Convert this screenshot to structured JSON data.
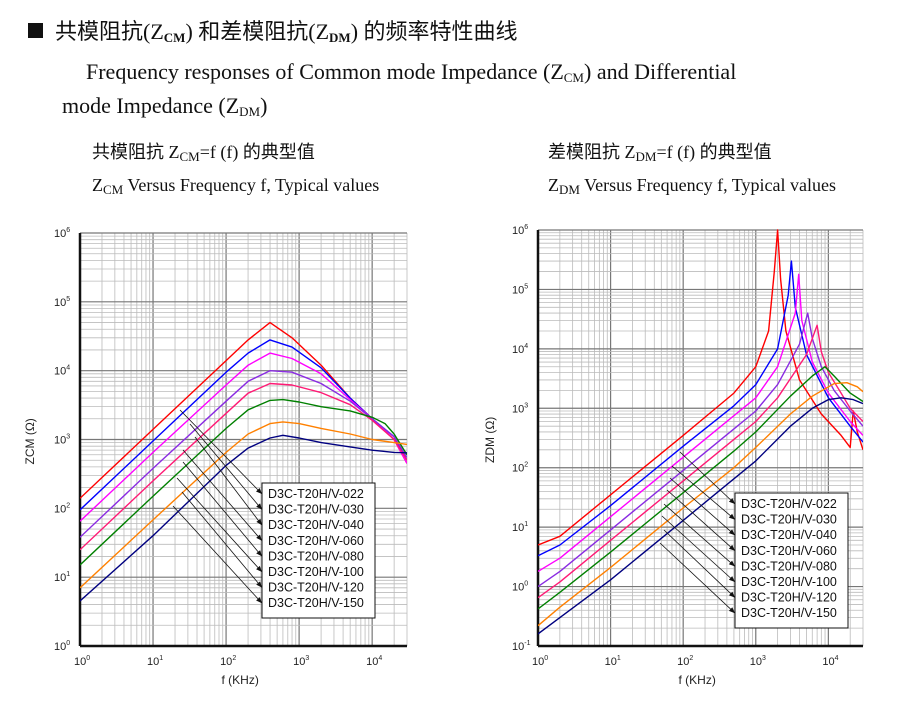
{
  "header": {
    "bullet_icon": "black-square-icon",
    "title_cn_prefix": "共模阻抗(Z",
    "title_cn_sub1": "CM",
    "title_cn_mid": ") 和差模阻抗(Z",
    "title_cn_sub2": "DM",
    "title_cn_suffix": ") 的频率特性曲线"
  },
  "intro": {
    "line1_prefix": "Frequency responses of Common mode Impedance (Z",
    "line1_sub": "CM",
    "line1_suffix": ") and Differential",
    "line2_prefix": "mode Impedance (Z",
    "line2_sub": "DM",
    "line2_suffix": ")"
  },
  "captions": {
    "left_cn_prefix": "共模阻抗 Z",
    "left_cn_sub": "CM",
    "left_cn_suffix": "=f (f)  的典型值",
    "left_en_prefix": "Z",
    "left_en_sub": "CM",
    "left_en_suffix": " Versus Frequency f, Typical values",
    "right_cn_prefix": "差模阻抗 Z",
    "right_cn_sub": "DM",
    "right_cn_suffix": "=f (f)  的典型值",
    "right_en_prefix": "Z",
    "right_en_sub": "DM",
    "right_en_suffix": " Versus Frequency f, Typical values"
  },
  "chart_data": [
    {
      "type": "line",
      "title": "ZCM Versus Frequency f, Typical values",
      "xlabel": "f (KHz)",
      "ylabel": "ZCM (Ω)",
      "xscale": "log",
      "yscale": "log",
      "xlim": [
        1,
        30000
      ],
      "ylim": [
        1,
        1000000
      ],
      "xticks": [
        "10^0",
        "10^1",
        "10^2",
        "10^3",
        "10^4"
      ],
      "yticks": [
        "10^0",
        "10^1",
        "10^2",
        "10^3",
        "10^4",
        "10^5",
        "10^6"
      ],
      "grid": true,
      "legend_position": "bottom-center",
      "series": [
        {
          "name": "D3C-T20H/V-022",
          "color": "#ff0000",
          "x": [
            1,
            10,
            100,
            200,
            400,
            800,
            2000,
            5000,
            10000,
            20000,
            30000
          ],
          "y": [
            140,
            1400,
            14000,
            28000,
            50000,
            30000,
            12000,
            4000,
            2000,
            1000,
            450
          ]
        },
        {
          "name": "D3C-T20H/V-030",
          "color": "#0000ff",
          "x": [
            1,
            10,
            100,
            200,
            400,
            800,
            2000,
            5000,
            10000,
            20000,
            30000
          ],
          "y": [
            95,
            950,
            9500,
            18000,
            28000,
            22000,
            11000,
            4000,
            2000,
            1100,
            500
          ]
        },
        {
          "name": "D3C-T20H/V-040",
          "color": "#ff00ff",
          "x": [
            1,
            10,
            100,
            200,
            400,
            800,
            2000,
            5000,
            10000,
            20000,
            30000
          ],
          "y": [
            65,
            650,
            6200,
            12000,
            18000,
            15000,
            9000,
            3800,
            2000,
            1000,
            450
          ]
        },
        {
          "name": "D3C-T20H/V-060",
          "color": "#8a2be2",
          "x": [
            1,
            10,
            100,
            200,
            400,
            800,
            2000,
            5000,
            10000,
            20000,
            30000
          ],
          "y": [
            38,
            380,
            3600,
            7000,
            10000,
            9500,
            6500,
            3600,
            2000,
            1100,
            550
          ]
        },
        {
          "name": "D3C-T20H/V-080",
          "color": "#ff1a75",
          "x": [
            1,
            10,
            100,
            200,
            400,
            800,
            2000,
            5000,
            10000,
            20000,
            30000
          ],
          "y": [
            25,
            250,
            2400,
            4700,
            6500,
            6200,
            4800,
            3200,
            1900,
            1000,
            500
          ]
        },
        {
          "name": "D3C-T20H/V-100",
          "color": "#008000",
          "x": [
            1,
            10,
            100,
            200,
            400,
            600,
            1000,
            2000,
            5000,
            10000,
            15000,
            20000,
            30000
          ],
          "y": [
            15,
            150,
            1450,
            2700,
            3700,
            3800,
            3500,
            3000,
            2600,
            2100,
            1700,
            1200,
            600
          ]
        },
        {
          "name": "D3C-T20H/V-120",
          "color": "#ff8000",
          "x": [
            1,
            10,
            100,
            200,
            400,
            600,
            1000,
            2000,
            5000,
            10000,
            20000,
            30000
          ],
          "y": [
            7,
            68,
            650,
            1200,
            1700,
            1800,
            1700,
            1450,
            1200,
            1000,
            900,
            850
          ]
        },
        {
          "name": "D3C-T20H/V-150",
          "color": "#000080",
          "x": [
            1,
            10,
            100,
            200,
            400,
            600,
            1000,
            2000,
            5000,
            10000,
            20000,
            30000
          ],
          "y": [
            4.5,
            40,
            420,
            750,
            1050,
            1150,
            1050,
            900,
            780,
            700,
            650,
            640
          ]
        }
      ]
    },
    {
      "type": "line",
      "title": "ZDM Versus Frequency f, Typical values",
      "xlabel": "f (KHz)",
      "ylabel": "ZDM (Ω)",
      "xscale": "log",
      "yscale": "log",
      "xlim": [
        1,
        30000
      ],
      "ylim": [
        0.1,
        1000000
      ],
      "xticks": [
        "10^0",
        "10^1",
        "10^2",
        "10^3",
        "10^4"
      ],
      "yticks": [
        "10^-1",
        "10^0",
        "10^1",
        "10^2",
        "10^3",
        "10^4",
        "10^5",
        "10^6"
      ],
      "grid": true,
      "legend_position": "bottom-right",
      "series": [
        {
          "name": "D3C-T20H/V-022",
          "color": "#ff0000",
          "x": [
            1,
            2,
            10,
            100,
            500,
            1000,
            1500,
            1800,
            2000,
            2200,
            2600,
            4000,
            8000,
            15000,
            20000,
            22000,
            25000,
            30000
          ],
          "y": [
            5,
            7,
            35,
            350,
            1800,
            5000,
            20000,
            200000,
            1000000,
            150000,
            20000,
            3000,
            800,
            350,
            220,
            900,
            400,
            200
          ]
        },
        {
          "name": "D3C-T20H/V-030",
          "color": "#0000ff",
          "x": [
            1,
            2,
            10,
            100,
            500,
            1000,
            2000,
            2800,
            3100,
            3500,
            5000,
            10000,
            20000,
            30000
          ],
          "y": [
            3.3,
            5,
            23,
            230,
            1100,
            2500,
            10000,
            80000,
            300000,
            50000,
            8000,
            1500,
            500,
            270
          ]
        },
        {
          "name": "D3C-T20H/V-040",
          "color": "#ff00ff",
          "x": [
            1,
            2,
            10,
            100,
            500,
            1000,
            2000,
            3500,
            3900,
            4300,
            6000,
            10000,
            20000,
            30000
          ],
          "y": [
            1.8,
            3,
            15,
            150,
            750,
            1500,
            5000,
            40000,
            180000,
            30000,
            6000,
            1800,
            600,
            350
          ]
        },
        {
          "name": "D3C-T20H/V-060",
          "color": "#8a2be2",
          "x": [
            1,
            2,
            10,
            100,
            500,
            1000,
            2000,
            4000,
            5200,
            6000,
            8000,
            12000,
            20000,
            30000
          ],
          "y": [
            1,
            1.8,
            9,
            90,
            450,
            900,
            2500,
            12000,
            40000,
            15000,
            5000,
            2000,
            900,
            500
          ]
        },
        {
          "name": "D3C-T20H/V-080",
          "color": "#ff1a75",
          "x": [
            1,
            2,
            10,
            100,
            500,
            1000,
            2000,
            5000,
            7000,
            8000,
            10000,
            15000,
            20000,
            30000
          ],
          "y": [
            0.65,
            1.2,
            6,
            60,
            300,
            600,
            1500,
            8000,
            25000,
            9000,
            4000,
            1800,
            1000,
            600
          ]
        },
        {
          "name": "D3C-T20H/V-100",
          "color": "#008000",
          "x": [
            1,
            2,
            10,
            100,
            500,
            1000,
            3000,
            6000,
            9000,
            12000,
            20000,
            30000
          ],
          "y": [
            0.42,
            0.8,
            3.8,
            38,
            190,
            400,
            1600,
            3500,
            5000,
            3500,
            1800,
            1300
          ]
        },
        {
          "name": "D3C-T20H/V-120",
          "color": "#ff8000",
          "x": [
            1,
            2,
            10,
            100,
            500,
            1000,
            3000,
            6000,
            12000,
            18000,
            25000,
            30000
          ],
          "y": [
            0.22,
            0.45,
            2.1,
            21,
            100,
            220,
            800,
            1600,
            2600,
            2700,
            2300,
            1900
          ]
        },
        {
          "name": "D3C-T20H/V-150",
          "color": "#000080",
          "x": [
            1,
            2,
            10,
            100,
            500,
            1000,
            3000,
            6000,
            10000,
            15000,
            22000,
            30000
          ],
          "y": [
            0.16,
            0.3,
            1.3,
            13,
            65,
            130,
            500,
            1000,
            1400,
            1500,
            1400,
            1200
          ]
        }
      ]
    }
  ]
}
